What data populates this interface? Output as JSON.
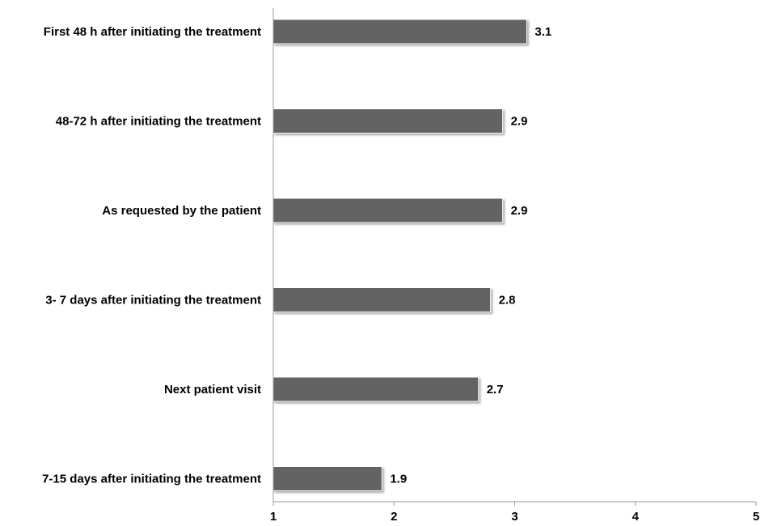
{
  "chart_data": {
    "type": "bar",
    "orientation": "horizontal",
    "categories": [
      "First 48 h after initiating the treatment",
      "48-72 h after initiating the treatment",
      "As requested by the patient",
      "3- 7 days after initiating the treatment",
      "Next patient visit",
      "7-15 days after initiating the treatment"
    ],
    "values": [
      3.1,
      2.9,
      2.9,
      2.8,
      2.7,
      1.9
    ],
    "value_labels": [
      "3.1",
      "2.9",
      "2.9",
      "2.8",
      "2.7",
      "1.9"
    ],
    "title": "",
    "xlabel": "",
    "ylabel": "",
    "xlim": [
      1,
      5
    ],
    "xticks": [
      1,
      2,
      3,
      4,
      5
    ],
    "xtick_labels": [
      "1",
      "2",
      "3",
      "4",
      "5"
    ],
    "grid": false,
    "legend": "none",
    "bar_color": "#636363",
    "axis_color": "#9a9a9a"
  }
}
